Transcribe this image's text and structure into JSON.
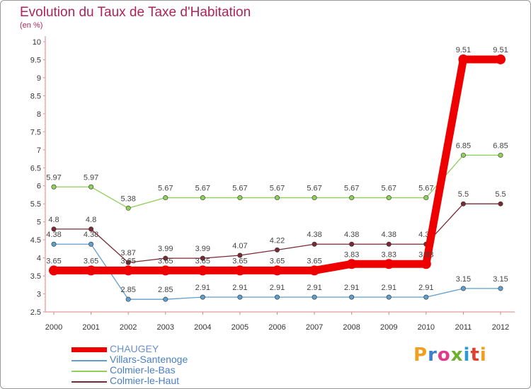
{
  "header": {
    "title": "Evolution du Taux de Taxe d'Habitation",
    "subtitle": "(en %)"
  },
  "logo": {
    "text": "Proxiti"
  },
  "chart_data": {
    "type": "line",
    "title": "Evolution du Taux de Taxe d'Habitation",
    "ylabel": "(en %)",
    "xlabel": "",
    "ylim": [
      2.5,
      10
    ],
    "yticks": [
      "2.5",
      "3",
      "3.5",
      "4",
      "4.5",
      "5",
      "5.5",
      "6",
      "6.5",
      "7",
      "7.5",
      "8",
      "8.5",
      "9",
      "9.5",
      "10"
    ],
    "categories": [
      "2000",
      "2001",
      "2002",
      "2003",
      "2004",
      "2005",
      "2006",
      "2007",
      "2008",
      "2009",
      "2010",
      "2011",
      "2012"
    ],
    "grid": false,
    "legend_position": "bottom-left",
    "series": [
      {
        "name": "CHAUGEY",
        "color": "#ee0000",
        "values": [
          3.65,
          3.65,
          3.65,
          3.65,
          3.65,
          3.65,
          3.65,
          3.65,
          3.83,
          3.83,
          3.83,
          9.51,
          9.51
        ],
        "labels": [
          "3.65",
          "3.65",
          "3.65",
          "3.65",
          "3.65",
          "3.65",
          "3.65",
          "3.65",
          "3.83",
          "3.83",
          "3.83",
          "9.51",
          "9.51"
        ]
      },
      {
        "name": "Villars-Santenoge",
        "color": "#5f9fcf",
        "values": [
          4.38,
          4.38,
          2.85,
          2.85,
          2.91,
          2.91,
          2.91,
          2.91,
          2.91,
          2.91,
          2.91,
          3.15,
          3.15
        ],
        "labels": [
          "4.38",
          "4.38",
          "2.85",
          "2.85",
          "2.91",
          "2.91",
          "2.91",
          "2.91",
          "2.91",
          "2.91",
          "2.91",
          "3.15",
          "3.15"
        ]
      },
      {
        "name": "Colmier-le-Bas",
        "color": "#8fcf5a",
        "values": [
          5.97,
          5.97,
          5.38,
          5.67,
          5.67,
          5.67,
          5.67,
          5.67,
          5.67,
          5.67,
          5.67,
          6.85,
          6.85
        ],
        "labels": [
          "5.97",
          "5.97",
          "5.38",
          "5.67",
          "5.67",
          "5.67",
          "5.67",
          "5.67",
          "5.67",
          "5.67",
          "5.67",
          "6.85",
          "6.85"
        ]
      },
      {
        "name": "Colmier-le-Haut",
        "color": "#7a2a34",
        "values": [
          4.8,
          4.8,
          3.87,
          3.99,
          3.99,
          4.07,
          4.22,
          4.38,
          4.38,
          4.38,
          4.38,
          5.5,
          5.5
        ],
        "labels": [
          "4.8",
          "4.8",
          "3.87",
          "3.99",
          "3.99",
          "4.07",
          "4.22",
          "4.38",
          "4.38",
          "4.38",
          "4.38",
          "5.5",
          "5.5"
        ]
      }
    ]
  }
}
